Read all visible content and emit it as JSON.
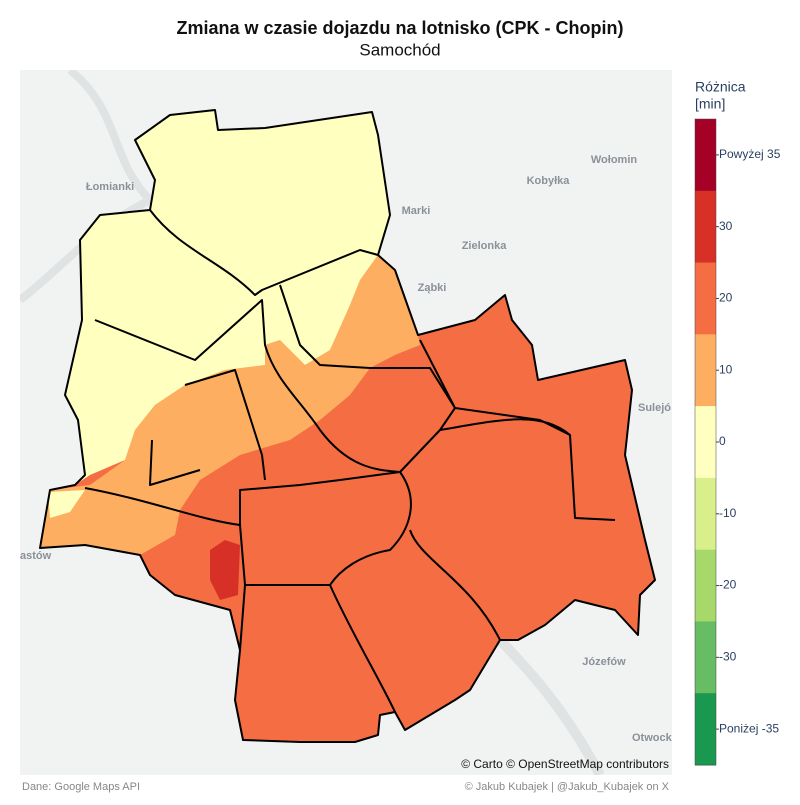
{
  "title": "Zmiana w czasie dojazdu na lotnisko (CPK - Chopin)",
  "subtitle": "Samochód",
  "places": [
    "Łomianki",
    "Marki",
    "Kobyłka",
    "Wołomin",
    "Zielonka",
    "Ząbki",
    "Sulejó",
    "astów",
    "Józefów",
    "Otwock"
  ],
  "attribution": "© Carto © OpenStreetMap contributors",
  "legend": {
    "title_lines": [
      "Różnica",
      "[min]"
    ],
    "ticks": [
      {
        "value": 35,
        "label": "Powyżej 35"
      },
      30,
      20,
      10,
      0,
      -10,
      -20,
      -30,
      {
        "value": -35,
        "label": "Poniżej -35"
      }
    ],
    "colors": [
      "#a50026",
      "#d73027",
      "#f46d43",
      "#fdae61",
      "#ffffbf",
      "#d9ef8b",
      "#a6d96a",
      "#66bd63",
      "#1a9850"
    ]
  },
  "footer": {
    "source": "Dane: Google Maps API",
    "author": "© Jakub Kubajek | @Jakub_Kubajek on X"
  }
}
